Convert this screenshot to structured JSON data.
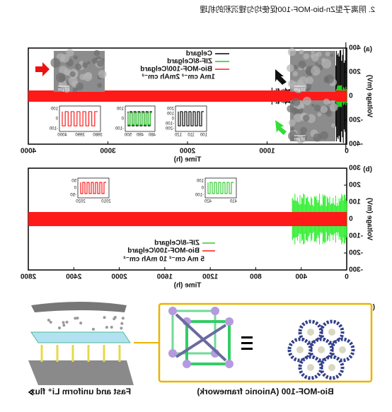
{
  "header": {
    "caption": "2. 阴离子型Zn-bio-MOF-100促使均匀锂沉积的机理"
  },
  "panel_a": {
    "label": "(a)",
    "y_axis_title": "Voltage (mV)",
    "x_axis_title": "Time (h)",
    "yticks": [
      "400",
      "200",
      "0",
      "-200",
      "-400"
    ],
    "xticks": [
      "0",
      "1000",
      "2000",
      "3000",
      "4000"
    ],
    "legend": [
      "Celgard",
      "ZIF-8/Celgard",
      "Bio-MOF-100/Celgard"
    ],
    "condition": "1mA cm⁻² 2mAh cm⁻²",
    "inset_1": {
      "yticks": [
        "200",
        "100",
        "0",
        "-100",
        "-200"
      ],
      "xticks": [
        "100",
        "110",
        "120"
      ]
    },
    "inset_2": {
      "yticks": [
        "100",
        "0",
        "-100"
      ],
      "xticks": [
        "480",
        "490",
        "500"
      ]
    },
    "inset_3": {
      "yticks": [
        "100",
        "0",
        "-100"
      ],
      "xticks": [
        "3980",
        "3990",
        "4000"
      ]
    },
    "scale_bars": [
      "10 μm",
      "10 μm",
      "10 μm"
    ]
  },
  "panel_b": {
    "label": "(b)",
    "y_axis_title": "Voltage (mV)",
    "x_axis_title": "Time (h)",
    "yticks": [
      "300",
      "200",
      "100",
      "0",
      "-100",
      "-200",
      "-300"
    ],
    "xticks": [
      "0",
      "400",
      "800",
      "1200",
      "1600",
      "2000",
      "2400",
      "2800"
    ],
    "legend": [
      "ZIF-8/Celgard",
      "Bio-MOF-100/Celgard"
    ],
    "condition": "5 mA cm⁻² 10 mAh cm⁻²",
    "inset_1": {
      "yticks": [
        "100",
        "0",
        "-100"
      ],
      "xticks": [
        "410",
        "420"
      ]
    },
    "inset_2": {
      "yticks": [
        "50",
        "0",
        "-50"
      ],
      "xticks": [
        "2010",
        "2020"
      ]
    }
  },
  "panel_c": {
    "label": "(c)",
    "framework_caption": "Bio-MOF-100 (Anionic framework)",
    "flux_caption": "Fast and uniform Li⁺ flux"
  }
}
